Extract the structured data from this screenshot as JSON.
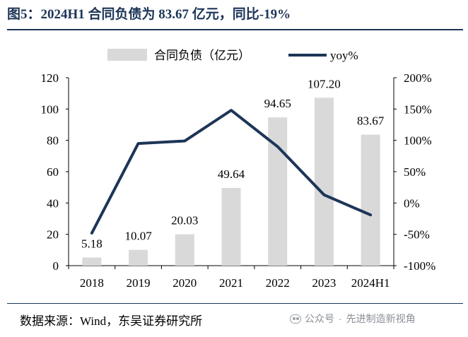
{
  "title": "图5：2024H1 合同负债为 83.67 亿元，同比-19%",
  "footer": {
    "source": "数据来源：Wind，东吴证券研究所",
    "watermark_prefix": "公众号",
    "watermark_sep": "·",
    "watermark_name": "先进制造新视角"
  },
  "colors": {
    "bar": "#d9d9d9",
    "line": "#1c3557",
    "text": "#000000"
  },
  "chart_data": {
    "type": "bar+line",
    "categories": [
      "2018",
      "2019",
      "2020",
      "2021",
      "2022",
      "2023",
      "2024H1"
    ],
    "series": [
      {
        "name": "合同负债（亿元）",
        "type": "bar",
        "axis": "left",
        "values": [
          5.18,
          10.07,
          20.03,
          49.64,
          94.65,
          107.2,
          83.67
        ],
        "labels": [
          "5.18",
          "10.07",
          "20.03",
          "49.64",
          "94.65",
          "107.20",
          "83.67"
        ]
      },
      {
        "name": "yoy%",
        "type": "line",
        "axis": "right",
        "values": [
          -48,
          95,
          99,
          148,
          90,
          13,
          -19
        ]
      }
    ],
    "left_axis": {
      "min": 0,
      "max": 120,
      "ticks": [
        "0",
        "20",
        "40",
        "60",
        "80",
        "100",
        "120"
      ]
    },
    "right_axis": {
      "min": -100,
      "max": 200,
      "ticks": [
        "-100%",
        "-50%",
        "0%",
        "50%",
        "100%",
        "150%",
        "200%"
      ]
    },
    "legend_position": "top-center",
    "grid": false
  }
}
